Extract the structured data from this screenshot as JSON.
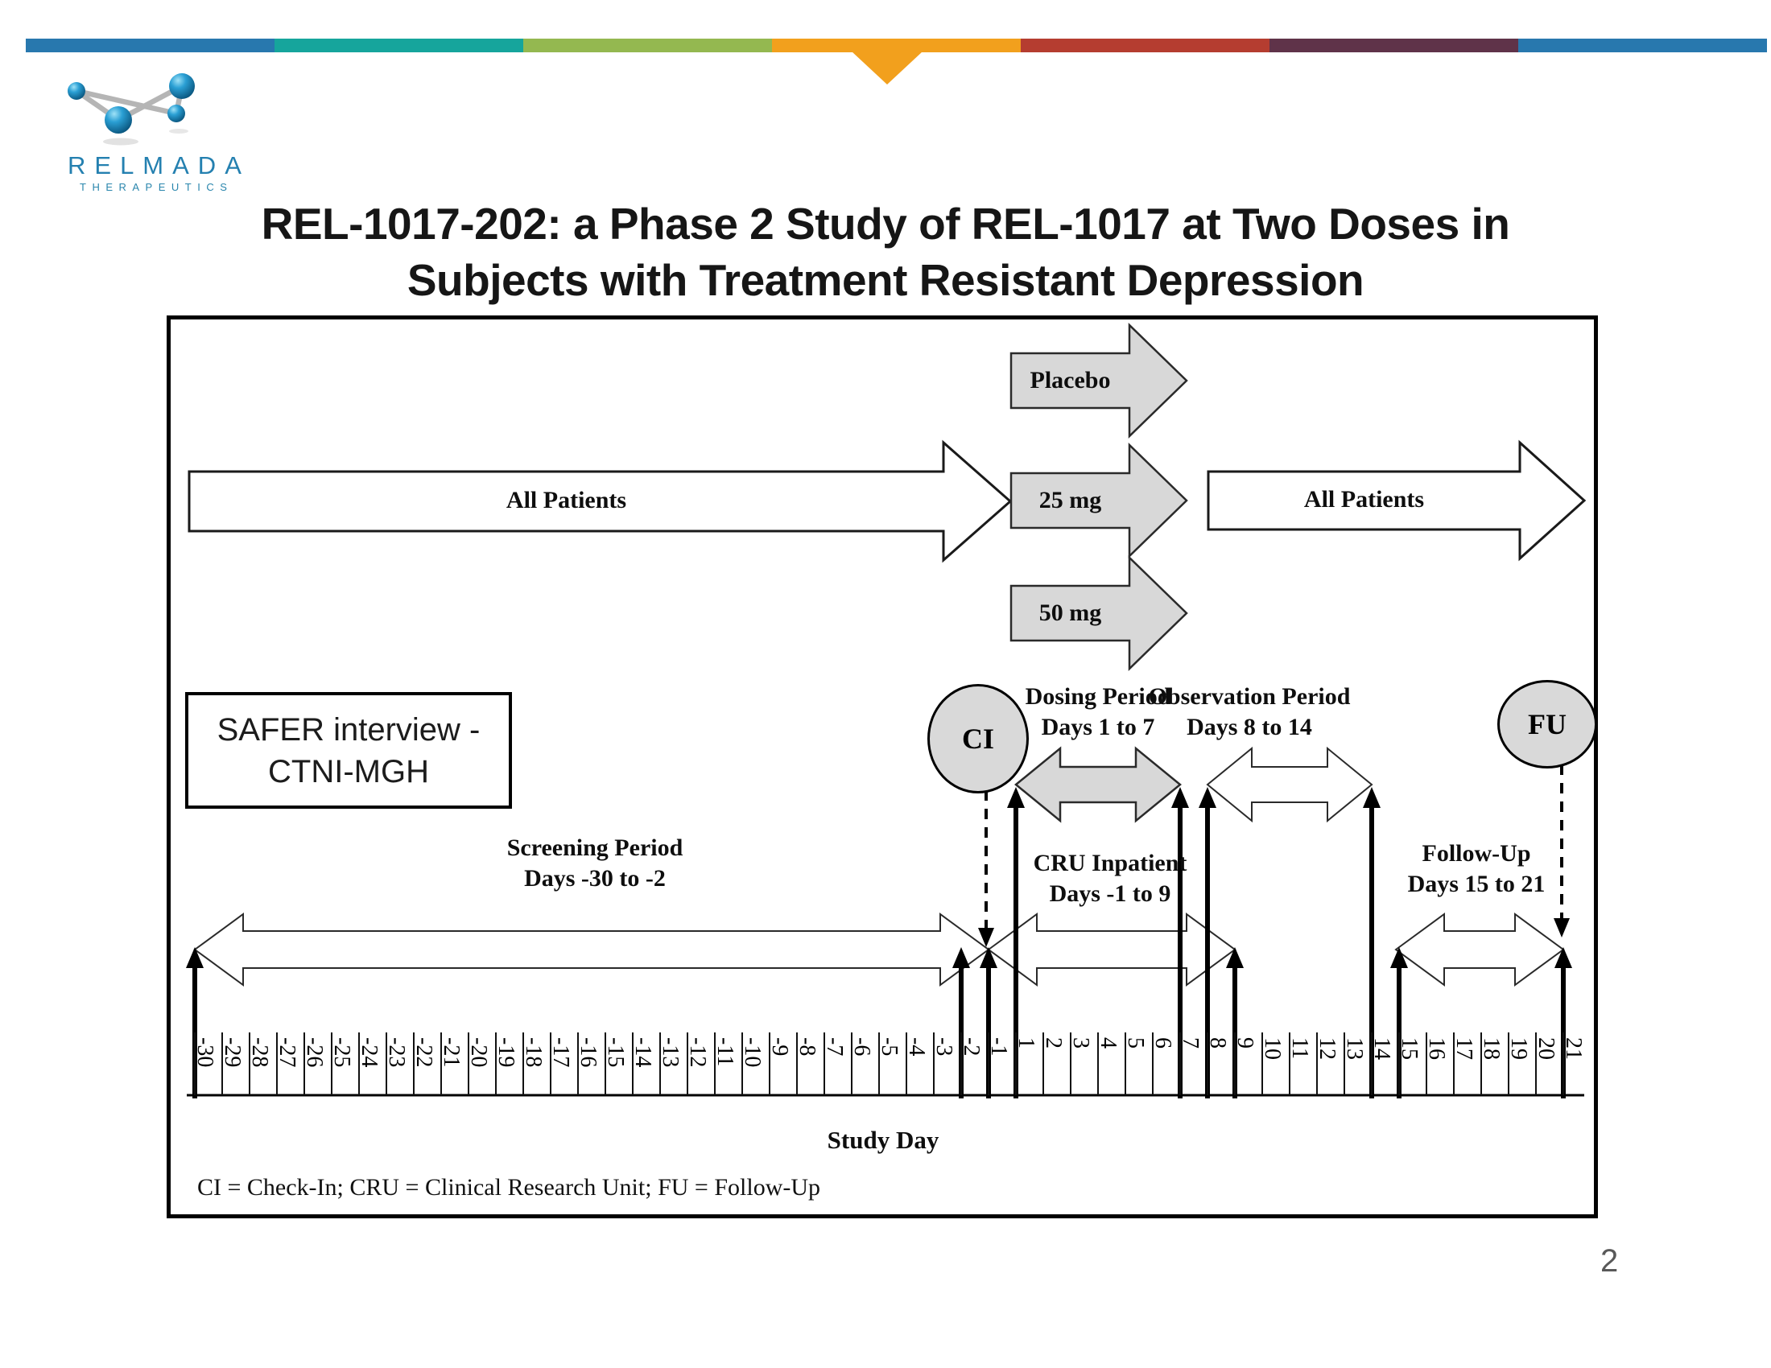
{
  "slide": {
    "page_number": "2",
    "title_line1": "REL-1017-202: a Phase 2 Study of REL-1017 at Two Doses in",
    "title_line2": "Subjects with Treatment Resistant Depression"
  },
  "logo": {
    "brand": "RELMADA",
    "tagline": "THERAPEUTICS"
  },
  "colors": {
    "bar_segments": [
      "#2878ae",
      "#16a59c",
      "#94b850",
      "#f2a01d",
      "#b53d30",
      "#5f3349",
      "#2878ae"
    ],
    "notch_orange": "#f2a01d",
    "logo_blue": "#2480b0",
    "arrow_gray_fill": "#d8d8d8",
    "oval_gray_fill": "#d9d9d9",
    "page_number_gray": "#595959"
  },
  "diagram": {
    "arrows": {
      "all_patients_left": "All Patients",
      "placebo": "Placebo",
      "dose_25": "25 mg",
      "dose_50": "50 mg",
      "all_patients_right": "All Patients"
    },
    "safer_box_line1": "SAFER interview -",
    "safer_box_line2": "CTNI-MGH",
    "ci_label": "CI",
    "fu_label": "FU",
    "periods": {
      "dosing": {
        "line1": "Dosing Period",
        "line2": "Days 1 to 7"
      },
      "observation": {
        "line1": "Observation Period",
        "line2": "Days 8 to 14"
      },
      "screening": {
        "line1": "Screening Period",
        "line2": "Days -30 to -2"
      },
      "cru": {
        "line1": "CRU Inpatient",
        "line2": "Days -1 to 9"
      },
      "followup": {
        "line1": "Follow-Up",
        "line2": "Days 15 to 21"
      }
    },
    "timeline": {
      "axis_label": "Study Day",
      "days": [
        -30,
        -29,
        -28,
        -27,
        -26,
        -25,
        -24,
        -23,
        -22,
        -21,
        -20,
        -19,
        -18,
        -17,
        -16,
        -15,
        -14,
        -13,
        -12,
        -11,
        -10,
        -9,
        -8,
        -7,
        -6,
        -5,
        -4,
        -3,
        -2,
        -1,
        1,
        2,
        3,
        4,
        5,
        6,
        7,
        8,
        9,
        10,
        11,
        12,
        13,
        14,
        15,
        16,
        17,
        18,
        19,
        20,
        21
      ],
      "up_arrow_days": [
        {
          "day": -30,
          "row": "low"
        },
        {
          "day": -2,
          "row": "low"
        },
        {
          "day": -1,
          "row": "low"
        },
        {
          "day": 1,
          "row": "mid"
        },
        {
          "day": 7,
          "row": "mid"
        },
        {
          "day": 8,
          "row": "mid"
        },
        {
          "day": 9,
          "row": "low"
        },
        {
          "day": 14,
          "row": "mid"
        },
        {
          "day": 15,
          "row": "low"
        },
        {
          "day": 21,
          "row": "low"
        }
      ]
    },
    "legend": "CI = Check-In; CRU = Clinical Research Unit; FU = Follow-Up"
  }
}
